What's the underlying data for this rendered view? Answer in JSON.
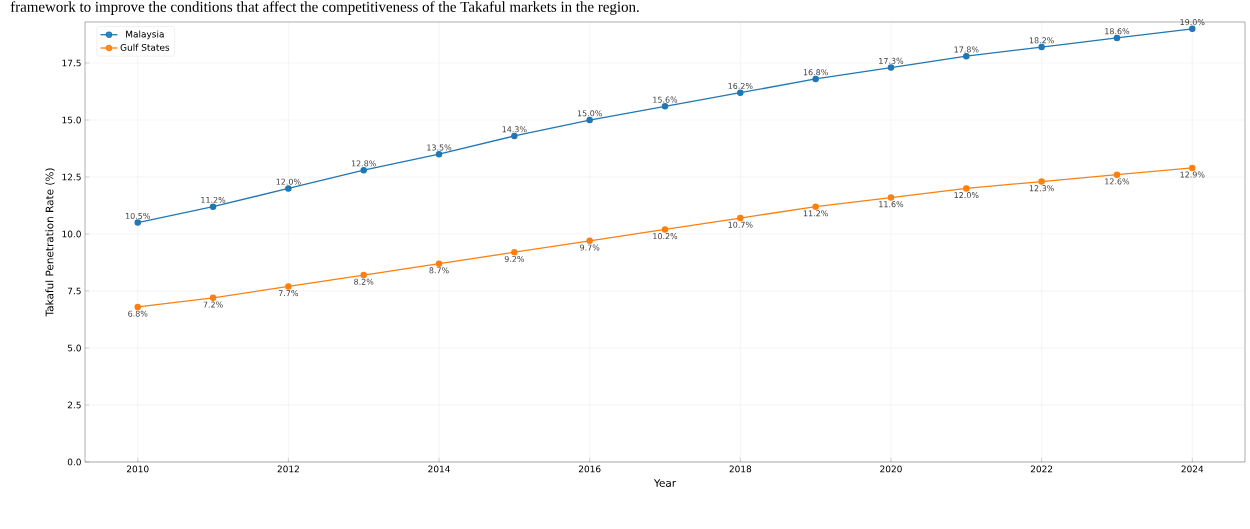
{
  "chart_data": {
    "type": "line",
    "xlabel": "Year",
    "ylabel": "Takaful Penetration Rate (%)",
    "annotations": [
      "framework to improve the conditions that affect the competitiveness of the Takaful markets in the region."
    ],
    "x": [
      2010,
      2011,
      2012,
      2013,
      2014,
      2015,
      2016,
      2017,
      2018,
      2019,
      2020,
      2021,
      2022,
      2023,
      2024
    ],
    "series": [
      {
        "name": "Malaysia",
        "color": "#1f77b4",
        "values": [
          10.5,
          11.2,
          12.0,
          12.8,
          13.5,
          14.3,
          15.0,
          15.6,
          16.2,
          16.8,
          17.3,
          17.8,
          18.2,
          18.6,
          19.0
        ],
        "value_labels": [
          "10.5%",
          "11.2%",
          "12.0%",
          "12.8%",
          "13.5%",
          "14.3%",
          "15.0%",
          "15.6%",
          "16.2%",
          "16.8%",
          "17.3%",
          "17.8%",
          "18.2%",
          "18.6%",
          "19.0%"
        ]
      },
      {
        "name": "Gulf States",
        "color": "#ff7f0e",
        "values": [
          6.8,
          7.2,
          7.7,
          8.2,
          8.7,
          9.2,
          9.7,
          10.2,
          10.7,
          11.2,
          11.6,
          12.0,
          12.3,
          12.6,
          12.9
        ],
        "value_labels": [
          "6.8%",
          "7.2%",
          "7.7%",
          "8.2%",
          "8.7%",
          "9.2%",
          "9.7%",
          "10.2%",
          "10.7%",
          "11.2%",
          "11.6%",
          "12.0%",
          "12.3%",
          "12.6%",
          "12.9%"
        ]
      }
    ],
    "xlim": [
      2009.3,
      2024.7
    ],
    "ylim": [
      0,
      19.3
    ],
    "xticks": [
      2010,
      2012,
      2014,
      2016,
      2018,
      2020,
      2022,
      2024
    ],
    "yticks": [
      {
        "value": 0,
        "label": "0.0"
      },
      {
        "value": 2.5,
        "label": "2.5"
      },
      {
        "value": 5,
        "label": "5.0"
      },
      {
        "value": 7.5,
        "label": "7.5"
      },
      {
        "value": 10,
        "label": "10.0"
      },
      {
        "value": 12.5,
        "label": "12.5"
      },
      {
        "value": 15,
        "label": "15.0"
      },
      {
        "value": 17.5,
        "label": "17.5"
      }
    ],
    "grid": true,
    "legend": "top left",
    "marker": "circle",
    "line_style": "solid"
  }
}
